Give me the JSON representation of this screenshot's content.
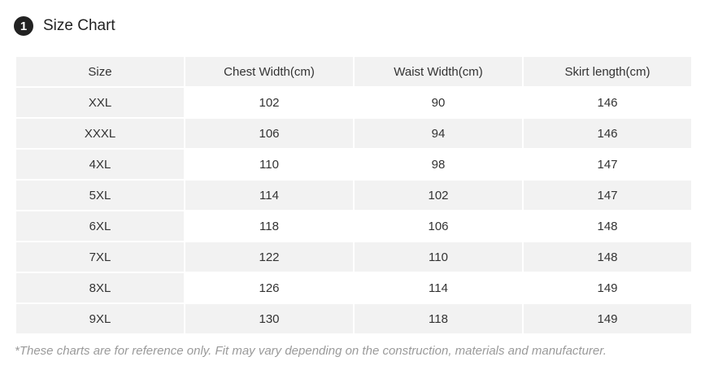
{
  "header": {
    "number": "1",
    "title": "Size Chart"
  },
  "table": {
    "columns": [
      "Size",
      "Chest Width(cm)",
      "Waist Width(cm)",
      "Skirt length(cm)"
    ],
    "rows": [
      [
        "XXL",
        "102",
        "90",
        "146"
      ],
      [
        "XXXL",
        "106",
        "94",
        "146"
      ],
      [
        "4XL",
        "110",
        "98",
        "147"
      ],
      [
        "5XL",
        "114",
        "102",
        "147"
      ],
      [
        "6XL",
        "118",
        "106",
        "148"
      ],
      [
        "7XL",
        "122",
        "110",
        "148"
      ],
      [
        "8XL",
        "126",
        "114",
        "149"
      ],
      [
        "9XL",
        "130",
        "118",
        "149"
      ]
    ]
  },
  "footnote": "*These charts are for reference only. Fit may vary depending on the construction, materials and manufacturer."
}
